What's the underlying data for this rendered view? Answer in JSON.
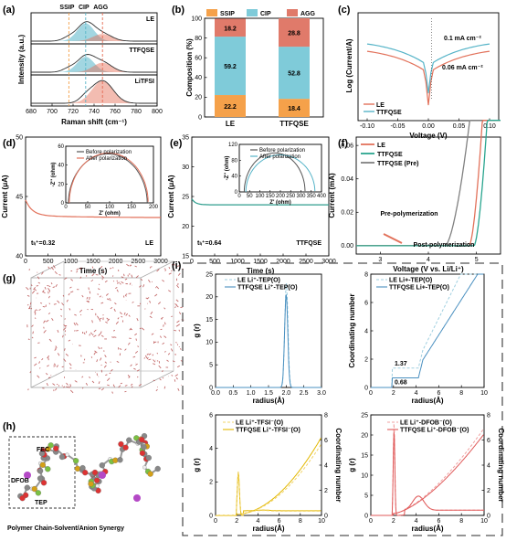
{
  "colors": {
    "le": "#e2725b",
    "ttfqse": "#56b4c8",
    "pre": "#808080",
    "ssip": "#f5a14a",
    "cip": "#7fcbd9",
    "agg": "#e07a6a",
    "yellow": "#e8c21a",
    "accent": "#e46a52",
    "dashed_frame": "#555555"
  },
  "panel_labels": {
    "a": "(a)",
    "b": "(b)",
    "c": "(c)",
    "d": "(d)",
    "e": "(e)",
    "f": "(f)",
    "g": "(g)",
    "h": "(h)",
    "i": "(i)"
  },
  "chart_data": [
    {
      "id": "a",
      "type": "area",
      "xlabel": "Raman shift (cm⁻¹)",
      "ylabel": "Intensity (a.u.)",
      "xlim": [
        680,
        800
      ],
      "xticks": [
        680,
        700,
        720,
        740,
        760,
        780,
        800
      ],
      "region_labels": [
        "SSIP",
        "CIP",
        "AGG"
      ],
      "region_positions": [
        716,
        732,
        748
      ],
      "panels": [
        "LE",
        "TTFQSE",
        "LiTFSI"
      ]
    },
    {
      "id": "b",
      "type": "bar",
      "stacked": true,
      "categories": [
        "LE",
        "TTFQSE"
      ],
      "series": [
        {
          "name": "SSIP",
          "values": [
            22.2,
            18.4
          ]
        },
        {
          "name": "CIP",
          "values": [
            59.2,
            52.8
          ]
        },
        {
          "name": "AGG",
          "values": [
            18.2,
            28.8
          ]
        }
      ],
      "ylabel": "Composition (%)",
      "ylim": [
        0,
        100
      ],
      "yticks": [
        0,
        20,
        40,
        60,
        80,
        100
      ]
    },
    {
      "id": "c",
      "type": "line",
      "xlabel": "Voltage (V)",
      "ylabel": "Log (Current/A)",
      "xlim": [
        -0.12,
        0.12
      ],
      "xticks": [
        "-0.10",
        "-0.05",
        "0.00",
        "0.05",
        "0.10"
      ],
      "series": [
        {
          "name": "LE"
        },
        {
          "name": "TTFQSE"
        }
      ],
      "annotations": [
        "0.1 mA cm⁻²",
        "0.06 mA cm⁻²"
      ]
    },
    {
      "id": "d",
      "type": "line",
      "xlabel": "Time (s)",
      "ylabel": "Current (μA)",
      "xlim": [
        0,
        3000
      ],
      "ylim": [
        40,
        50
      ],
      "xticks": [
        0,
        500,
        1000,
        1500,
        2000,
        2500,
        3000
      ],
      "yticks": [
        40,
        45,
        50
      ],
      "tli": "tₗᵢ⁺=0.32",
      "tag": "LE",
      "inset": {
        "xlabel": "Z' (ohm)",
        "ylabel": "-Z'' (ohm)",
        "xticks": [
          0,
          50,
          100,
          150,
          200
        ],
        "yticks": [
          0,
          20,
          40,
          60
        ],
        "legend": [
          "Before polarization",
          "After polarization"
        ]
      }
    },
    {
      "id": "e",
      "type": "line",
      "xlabel": "Time (s)",
      "ylabel": "Current (μA)",
      "xlim": [
        0,
        3000
      ],
      "ylim": [
        15,
        35
      ],
      "xticks": [
        0,
        500,
        1000,
        1500,
        2000,
        2500,
        3000
      ],
      "yticks": [
        15,
        20,
        25,
        30,
        35
      ],
      "tli": "tₗᵢ⁺=0.64",
      "tag": "TTFQSE",
      "inset": {
        "xlabel": "Z' (ohm)",
        "ylabel": "-Z'' (ohm)",
        "xticks": [
          0,
          50,
          100,
          150,
          200,
          250,
          300,
          350,
          400
        ],
        "yticks": [
          0,
          40,
          80,
          120
        ],
        "legend": [
          "Before polarization",
          "After polarization"
        ]
      }
    },
    {
      "id": "f",
      "type": "line",
      "xlabel": "Voltage (V vs. Li/Li⁺)",
      "ylabel": "Current (mA)",
      "xlim": [
        2.5,
        5.5
      ],
      "ylim": [
        -0.005,
        0.065
      ],
      "xticks": [
        3,
        4,
        5
      ],
      "yticks": [
        "0.00",
        "0.02",
        "0.04",
        "0.06"
      ],
      "series": [
        {
          "name": "LE"
        },
        {
          "name": "TTFQSE"
        },
        {
          "name": "TTFQSE (Pre)"
        }
      ],
      "annotations": [
        "Pre-polymerization",
        "Post-polymerization"
      ]
    },
    {
      "id": "i1",
      "type": "line",
      "xlabel": "radius(Å)",
      "ylabel": "g (r)",
      "xlim": [
        0,
        3
      ],
      "ylim": [
        0,
        25
      ],
      "xticks": [
        "0.0",
        "0.5",
        "1.0",
        "1.5",
        "2.0",
        "2.5",
        "3.0"
      ],
      "yticks": [
        0,
        5,
        10,
        15,
        20,
        25
      ],
      "series": [
        {
          "name": "LE Li⁺-TEP(O)"
        },
        {
          "name": "TTFQSE Li⁺-TEP(O)"
        }
      ]
    },
    {
      "id": "i2",
      "type": "line",
      "xlabel": "radius(Å)",
      "ylabel": "Coordinating number",
      "xlim": [
        0,
        10
      ],
      "ylim": [
        0,
        8
      ],
      "xticks": [
        0,
        2,
        4,
        6,
        8,
        10
      ],
      "yticks": [
        0,
        2,
        4,
        6,
        8
      ],
      "series": [
        {
          "name": "LE Li+-TEP(O)"
        },
        {
          "name": "TTFQSE Li+-TEP(O)"
        }
      ],
      "annotations": [
        "1.37",
        "0.68"
      ]
    },
    {
      "id": "i3",
      "type": "line",
      "xlabel": "radius(Å)",
      "ylabel": "g (r)",
      "ylabel_right": "Coordinating number",
      "xlim": [
        0,
        10
      ],
      "xticks": [
        0,
        2,
        4,
        6,
        8,
        10
      ],
      "yticks_left": [
        0,
        2,
        4,
        6
      ],
      "yticks_right": [
        0,
        2,
        4,
        6,
        8
      ],
      "series": [
        {
          "name": "LE Li⁺-TFSI⁻(O)"
        },
        {
          "name": "TTFQSE Li⁺-TFSI⁻(O)"
        }
      ]
    },
    {
      "id": "i4",
      "type": "line",
      "xlabel": "radius(Å)",
      "ylabel": "g (r)",
      "ylabel_right": "Coordinating number",
      "xlim": [
        0,
        10
      ],
      "xticks": [
        0,
        2,
        4,
        6,
        8,
        10
      ],
      "yticks_left": [
        0,
        5,
        10,
        15,
        20,
        25
      ],
      "yticks_right": [
        0,
        2,
        4,
        6,
        8
      ],
      "series": [
        {
          "name": "LE Li⁺-DFOB⁻(O)"
        },
        {
          "name": "TTFQSE Li⁺-DFOB⁻(O)"
        }
      ]
    }
  ],
  "h_labels": {
    "fec": "FEC",
    "dfob": "DFOB",
    "tep": "TEP",
    "caption": "Polymer Chain-Solvent/Anion Synergy"
  }
}
